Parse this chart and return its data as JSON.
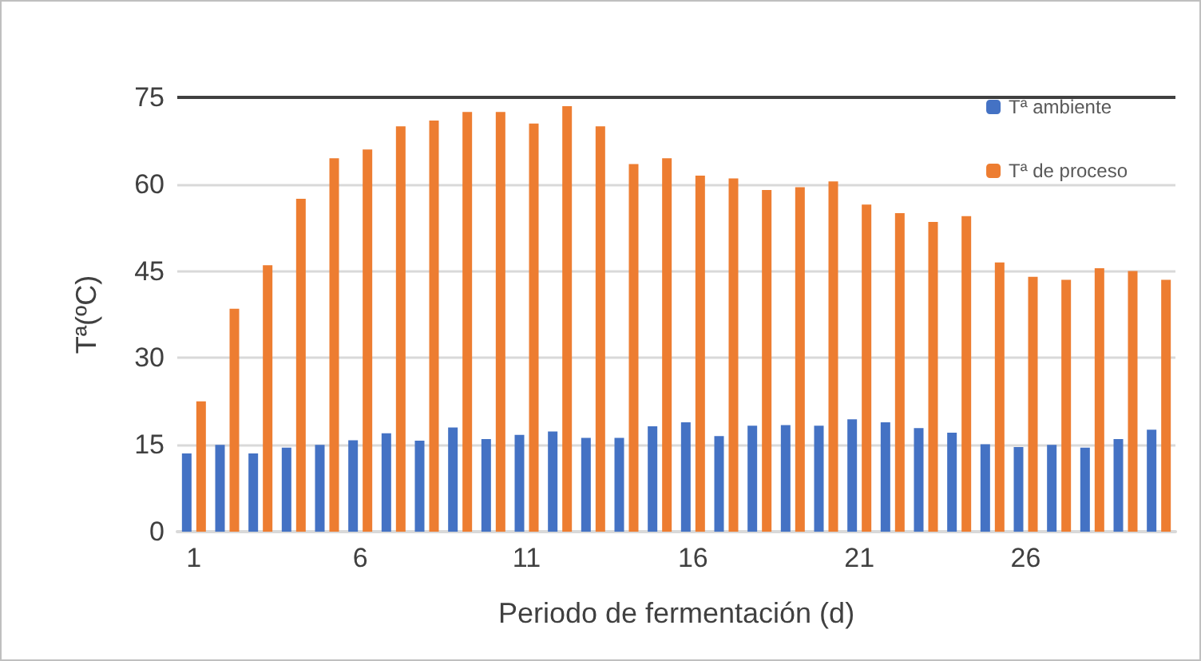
{
  "chart_data": {
    "type": "bar",
    "xlabel": "Periodo de fermentación (d)",
    "ylabel": "Tª(ºC)",
    "x": [
      1,
      2,
      3,
      4,
      5,
      6,
      7,
      8,
      9,
      10,
      11,
      12,
      13,
      14,
      15,
      16,
      17,
      18,
      19,
      20,
      21,
      22,
      23,
      24,
      25,
      26,
      27,
      28,
      29,
      30
    ],
    "xlim": [
      0.5,
      30.5
    ],
    "xticks": [
      1,
      6,
      11,
      16,
      21,
      26
    ],
    "series": [
      {
        "name": "Tª ambiente",
        "color": "#4472c4",
        "values": [
          13.5,
          15,
          13.5,
          14.5,
          15,
          15.8,
          17,
          15.7,
          18,
          16,
          16.7,
          17.3,
          16.2,
          16.2,
          18.2,
          18.9,
          16.5,
          18.3,
          18.4,
          18.3,
          19.4,
          18.9,
          17.9,
          17.1,
          15.1,
          14.6,
          15,
          14.5,
          16,
          17.6
        ]
      },
      {
        "name": "Tª de proceso",
        "color": "#ed7d31",
        "values": [
          22.5,
          38.5,
          46,
          57.5,
          64.5,
          66,
          70,
          71,
          72.5,
          72.5,
          70.5,
          73.5,
          70,
          63.5,
          64.5,
          61.5,
          61,
          59,
          59.5,
          60.5,
          56.5,
          55,
          53.5,
          54.5,
          46.5,
          44,
          43.5,
          45.5,
          45,
          43.5
        ]
      }
    ],
    "ylim": [
      0,
      75
    ],
    "yticks": [
      0,
      15,
      30,
      45,
      60,
      75
    ],
    "grid": "y",
    "legend": "top right",
    "ref_lines": [
      {
        "axis": "y",
        "value": 75,
        "color": "#404040"
      }
    ]
  }
}
